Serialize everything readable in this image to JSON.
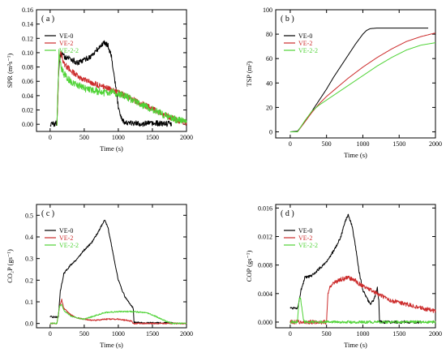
{
  "chart_data": [
    {
      "type": "line",
      "panel_label": "( a )",
      "xlabel": "Time (s)",
      "ylabel": "SPR (m²s⁻¹)",
      "xlim": [
        -200,
        2000
      ],
      "ylim": [
        -0.01,
        0.16
      ],
      "xticks": [
        0,
        500,
        1000,
        1500,
        2000
      ],
      "yticks": [
        0.0,
        0.02,
        0.04,
        0.06,
        0.08,
        0.1,
        0.12,
        0.14,
        0.16
      ],
      "ytick_format": 2,
      "legend_position": "top-left",
      "series": [
        {
          "name": "VE-0",
          "color": "#000000",
          "noise": 0.004,
          "x": [
            0,
            100,
            120,
            140,
            160,
            200,
            300,
            400,
            500,
            600,
            700,
            800,
            850,
            900,
            950,
            1000,
            1050,
            1100,
            1200,
            1500,
            1780
          ],
          "y": [
            0.0,
            0.001,
            0.06,
            0.09,
            0.1,
            0.095,
            0.092,
            0.085,
            0.09,
            0.095,
            0.105,
            0.115,
            0.11,
            0.095,
            0.06,
            0.025,
            0.008,
            0.002,
            0.001,
            0.001,
            0.001
          ]
        },
        {
          "name": "VE-2",
          "color": "#cc2b2b",
          "noise": 0.004,
          "x": [
            100,
            130,
            160,
            200,
            300,
            400,
            500,
            600,
            700,
            800,
            900,
            1000,
            1100,
            1200,
            1400,
            1600,
            1800,
            2000
          ],
          "y": [
            0.0,
            0.09,
            0.1,
            0.085,
            0.075,
            0.068,
            0.062,
            0.058,
            0.055,
            0.052,
            0.048,
            0.045,
            0.04,
            0.035,
            0.026,
            0.017,
            0.008,
            0.002
          ]
        },
        {
          "name": "VE-2-2",
          "color": "#4fd336",
          "noise": 0.005,
          "x": [
            100,
            130,
            160,
            200,
            300,
            400,
            500,
            600,
            700,
            800,
            900,
            1000,
            1100,
            1200,
            1400,
            1600,
            1800,
            2000
          ],
          "y": [
            0.0,
            0.1,
            0.08,
            0.07,
            0.06,
            0.055,
            0.05,
            0.048,
            0.046,
            0.044,
            0.045,
            0.043,
            0.04,
            0.034,
            0.025,
            0.016,
            0.008,
            0.003
          ]
        }
      ]
    },
    {
      "type": "line",
      "panel_label": "( b )",
      "xlabel": "Time (s)",
      "ylabel": "TSP (m²)",
      "xlim": [
        -200,
        2000
      ],
      "ylim": [
        -5,
        100
      ],
      "xticks": [
        0,
        500,
        1000,
        1500,
        2000
      ],
      "yticks": [
        0,
        20,
        40,
        60,
        80,
        100
      ],
      "ytick_format": 0,
      "legend_position": "top-left",
      "series": [
        {
          "name": "VE-0",
          "color": "#000000",
          "noise": 0,
          "x": [
            0,
            100,
            200,
            300,
            400,
            500,
            600,
            700,
            800,
            900,
            1000,
            1050,
            1100,
            1200,
            1500,
            1900
          ],
          "y": [
            0,
            0.5,
            8,
            17,
            26,
            35,
            45,
            54,
            63,
            72,
            80,
            83,
            84.5,
            85,
            85,
            85
          ]
        },
        {
          "name": "VE-2",
          "color": "#cc2b2b",
          "noise": 0,
          "x": [
            0,
            100,
            200,
            300,
            400,
            500,
            600,
            800,
            1000,
            1200,
            1400,
            1600,
            1800,
            2000
          ],
          "y": [
            0,
            0,
            8,
            16,
            23,
            29,
            34,
            44,
            53,
            61,
            68,
            74,
            78,
            81
          ]
        },
        {
          "name": "VE-2-2",
          "color": "#4fd336",
          "noise": 0,
          "x": [
            0,
            100,
            200,
            300,
            400,
            500,
            600,
            800,
            1000,
            1200,
            1400,
            1600,
            1800,
            2000
          ],
          "y": [
            0,
            0,
            9,
            17,
            22,
            26,
            30,
            38,
            46,
            54,
            61,
            67,
            71,
            73
          ]
        }
      ]
    },
    {
      "type": "line",
      "panel_label": "( c )",
      "xlabel": "Time (s)",
      "ylabel": "CO₂P (gs⁻¹)",
      "xlim": [
        -200,
        2000
      ],
      "ylim": [
        -0.02,
        0.55
      ],
      "xticks": [
        0,
        500,
        1000,
        1500,
        2000
      ],
      "yticks": [
        0.0,
        0.1,
        0.2,
        0.3,
        0.4,
        0.5
      ],
      "ytick_format": 1,
      "legend_position": "top-left",
      "series": [
        {
          "name": "VE-0",
          "color": "#000000",
          "noise": 0.004,
          "x": [
            0,
            120,
            150,
            200,
            300,
            400,
            500,
            600,
            700,
            800,
            850,
            900,
            950,
            1000,
            1100,
            1200,
            1220,
            1230,
            1300,
            1400,
            1800
          ],
          "y": [
            0.03,
            0.03,
            0.15,
            0.23,
            0.27,
            0.3,
            0.34,
            0.37,
            0.42,
            0.48,
            0.44,
            0.36,
            0.28,
            0.2,
            0.12,
            0.08,
            0.07,
            0.005,
            0.003,
            0.002,
            0.002
          ]
        },
        {
          "name": "VE-2",
          "color": "#cc2b2b",
          "noise": 0.003,
          "x": [
            0,
            100,
            140,
            170,
            200,
            300,
            400,
            500,
            600,
            700,
            800,
            1000,
            1200,
            1220,
            1300,
            1500,
            1700,
            2000
          ],
          "y": [
            0.0,
            0.0,
            0.08,
            0.11,
            0.07,
            0.04,
            0.025,
            0.02,
            0.015,
            0.015,
            0.02,
            0.02,
            0.01,
            0.0,
            0.0,
            0.0,
            0.0,
            0.0
          ]
        },
        {
          "name": "VE-2-2",
          "color": "#4fd336",
          "noise": 0.003,
          "x": [
            0,
            100,
            140,
            170,
            200,
            300,
            400,
            500,
            600,
            700,
            800,
            1000,
            1200,
            1400,
            1500,
            1600,
            1700,
            1800,
            2000
          ],
          "y": [
            0.0,
            0.0,
            0.08,
            0.09,
            0.06,
            0.035,
            0.025,
            0.02,
            0.03,
            0.04,
            0.05,
            0.055,
            0.055,
            0.05,
            0.04,
            0.025,
            0.01,
            0.0,
            0.0
          ]
        }
      ]
    },
    {
      "type": "line",
      "panel_label": "( d )",
      "xlabel": "Time (s)",
      "ylabel": "COP (gs⁻¹)",
      "xlim": [
        -200,
        2000
      ],
      "ylim": [
        -0.0008,
        0.0165
      ],
      "xticks": [
        0,
        500,
        1000,
        1500,
        2000
      ],
      "yticks": [
        0.0,
        0.004,
        0.008,
        0.012,
        0.016
      ],
      "ytick_format": 3,
      "legend_position": "top-left",
      "series": [
        {
          "name": "VE-0",
          "color": "#000000",
          "noise": 0.0002,
          "x": [
            0,
            100,
            150,
            200,
            300,
            400,
            500,
            600,
            700,
            750,
            800,
            850,
            900,
            950,
            1000,
            1100,
            1150,
            1200,
            1220,
            1230,
            1300,
            1800
          ],
          "y": [
            0.002,
            0.002,
            0.0045,
            0.0062,
            0.0065,
            0.0075,
            0.0085,
            0.01,
            0.012,
            0.014,
            0.015,
            0.0135,
            0.0105,
            0.007,
            0.0045,
            0.0025,
            0.003,
            0.0048,
            0.003,
            0.0,
            0.0,
            0.0
          ]
        },
        {
          "name": "VE-2",
          "color": "#cc2b2b",
          "noise": 0.0003,
          "x": [
            0,
            500,
            510,
            520,
            550,
            600,
            700,
            800,
            900,
            1000,
            1100,
            1200,
            1400,
            1600,
            1800,
            2000
          ],
          "y": [
            0.0,
            0.0,
            0.002,
            0.004,
            0.005,
            0.0055,
            0.006,
            0.0062,
            0.0058,
            0.005,
            0.0045,
            0.004,
            0.003,
            0.0025,
            0.002,
            0.0015
          ]
        },
        {
          "name": "VE-2-2",
          "color": "#4fd336",
          "noise": 0.0002,
          "x": [
            0,
            100,
            120,
            140,
            160,
            180,
            200,
            300,
            1000,
            2000
          ],
          "y": [
            0.0,
            0.0,
            0.003,
            0.0035,
            0.002,
            0.0005,
            0.0,
            0.0,
            0.0,
            0.0
          ]
        }
      ]
    }
  ]
}
